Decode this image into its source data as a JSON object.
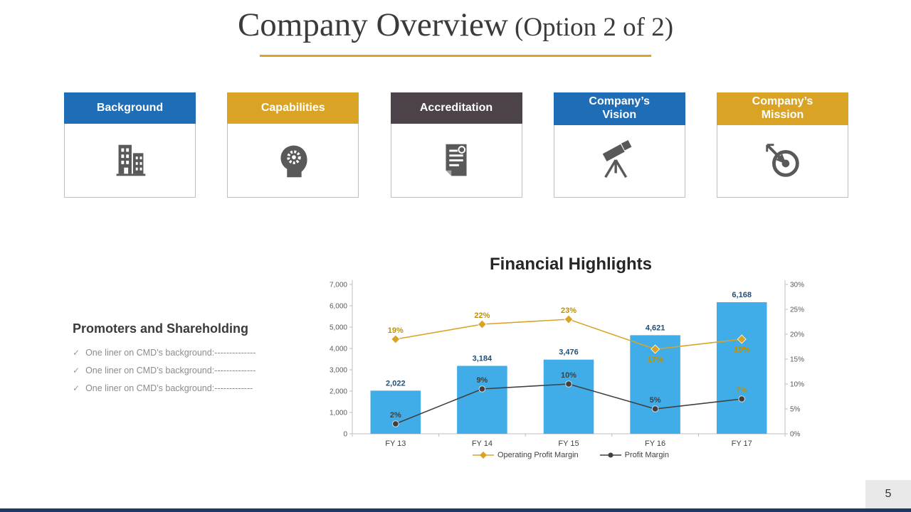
{
  "slide": {
    "title_main": "Company Overview",
    "title_suffix": " (Option 2 of 2)",
    "page_number": "5"
  },
  "theme": {
    "gold": "#D9A426",
    "blue": "#1F6DB6",
    "dark": "#4B4349",
    "icon_gray": "#595959",
    "bar_blue": "#41ADE8",
    "bottom_bar": "#1F3864"
  },
  "cards": [
    {
      "label": "Background",
      "color": "#1F6DB6",
      "icon": "building-icon"
    },
    {
      "label": "Capabilities",
      "color": "#D9A426",
      "icon": "head-gears-icon"
    },
    {
      "label": "Accreditation",
      "color": "#4B4349",
      "icon": "certificate-icon"
    },
    {
      "label": "Company’s\nVision",
      "color": "#1F6DB6",
      "icon": "telescope-icon"
    },
    {
      "label": "Company’s\nMission",
      "color": "#D9A426",
      "icon": "target-icon"
    }
  ],
  "promoters": {
    "heading": "Promoters and Shareholding",
    "bullets": [
      "One liner on CMD’s background:--------------",
      "One liner on CMD’s background:--------------",
      "One liner on CMD’s background:-------------"
    ]
  },
  "chart_data": {
    "type": "bar",
    "subtype": "bar-line combo, dual axis",
    "title": "Financial Highlights",
    "categories": [
      "FY 13",
      "FY 14",
      "FY 15",
      "FY 16",
      "FY 17"
    ],
    "bars": {
      "name": "Revenue",
      "values": [
        2022,
        3184,
        3476,
        4621,
        6168
      ],
      "labels": [
        "2,022",
        "3,184",
        "3,476",
        "4,621",
        "6,168"
      ],
      "color": "#41ADE8",
      "axis": "left"
    },
    "series": [
      {
        "name": "Operating Profit Margin",
        "values": [
          19,
          22,
          23,
          17,
          19
        ],
        "labels": [
          "19%",
          "22%",
          "23%",
          "17%",
          "19%"
        ],
        "color": "#D9A426",
        "marker": "diamond",
        "axis": "right",
        "label_pos": [
          "above",
          "above",
          "above",
          "below",
          "below"
        ],
        "label_colors": [
          "#BF9000",
          "#BF9000",
          "#BF9000",
          "#BF9000",
          "#BF9000"
        ]
      },
      {
        "name": "Profit Margin",
        "values": [
          2,
          9,
          10,
          5,
          7
        ],
        "labels": [
          "2%",
          "9%",
          "10%",
          "5%",
          "7%"
        ],
        "color": "#404040",
        "marker": "circle",
        "axis": "right",
        "label_pos": [
          "above",
          "above",
          "above",
          "above",
          "above"
        ],
        "label_colors": [
          "#404040",
          "#404040",
          "#404040",
          "#404040",
          "#BF9000"
        ]
      }
    ],
    "y_left": {
      "min": 0,
      "max": 7000,
      "step": 1000,
      "ticks": [
        "0",
        "1,000",
        "2,000",
        "3,000",
        "4,000",
        "5,000",
        "6,000",
        "7,000"
      ]
    },
    "y_right": {
      "min": 0,
      "max": 30,
      "step": 5,
      "ticks": [
        "0%",
        "5%",
        "10%",
        "15%",
        "20%",
        "25%",
        "30%"
      ]
    },
    "legend_position": "bottom",
    "grid": false
  }
}
